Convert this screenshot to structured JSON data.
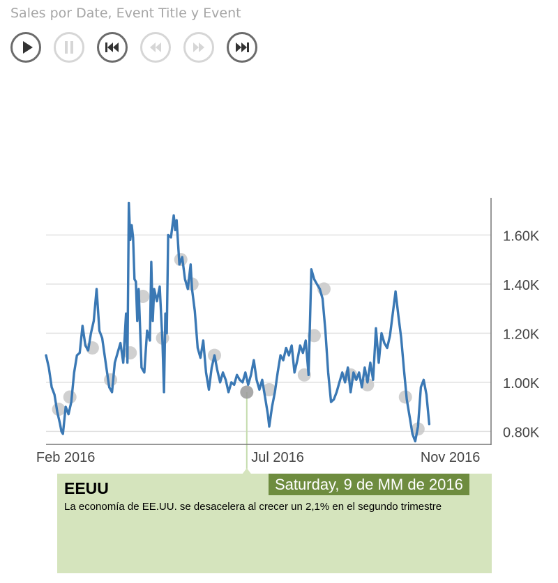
{
  "header": {
    "title": "Sales por Date, Event Title y Event"
  },
  "controls": [
    {
      "name": "play-button",
      "icon": "play-icon",
      "enabled": true
    },
    {
      "name": "pause-button",
      "icon": "pause-icon",
      "enabled": false
    },
    {
      "name": "skip-to-start-button",
      "icon": "skip-to-start-icon",
      "enabled": true
    },
    {
      "name": "step-back-button",
      "icon": "step-back-icon",
      "enabled": false
    },
    {
      "name": "step-forward-button",
      "icon": "step-forward-icon",
      "enabled": false
    },
    {
      "name": "skip-to-end-button",
      "icon": "skip-to-end-icon",
      "enabled": true
    }
  ],
  "colors": {
    "line": "#3a78b4",
    "marker": "#c8c8c8",
    "marker_active": "#9a9a9a",
    "gridline": "#e1e1e1",
    "axis_text": "#444444",
    "info_background": "#d5e4bd",
    "date_background": "#6e8c3f",
    "guide_line": "#c5dcae"
  },
  "chart_data": {
    "type": "line",
    "title": "Sales por Date, Event Title y Event",
    "xlim": [
      "2016-01-18",
      "2016-11-30"
    ],
    "ylim": [
      750,
      1740
    ],
    "y_ticks": [
      {
        "value": 800,
        "label": "0.80K"
      },
      {
        "value": 1000,
        "label": "1.00K"
      },
      {
        "value": 1200,
        "label": "1.20K"
      },
      {
        "value": 1400,
        "label": "1.40K"
      },
      {
        "value": 1600,
        "label": "1.60K"
      }
    ],
    "x_ticks": [
      {
        "date": "2016-02-01",
        "label": "Feb 2016"
      },
      {
        "date": "2016-07-01",
        "label": "Jul 2016"
      },
      {
        "date": "2016-11-01",
        "label": "Nov 2016"
      }
    ],
    "grid": true,
    "y_axis_position": "right",
    "series": [
      {
        "values": [
          [
            "2016-01-18",
            1110
          ],
          [
            "2016-01-20",
            1060
          ],
          [
            "2016-01-22",
            980
          ],
          [
            "2016-01-24",
            950
          ],
          [
            "2016-01-26",
            880
          ],
          [
            "2016-01-28",
            830
          ],
          [
            "2016-01-29",
            800
          ],
          [
            "2016-01-30",
            790
          ],
          [
            "2016-02-01",
            900
          ],
          [
            "2016-02-03",
            870
          ],
          [
            "2016-02-05",
            920
          ],
          [
            "2016-02-07",
            1040
          ],
          [
            "2016-02-09",
            1110
          ],
          [
            "2016-02-11",
            1120
          ],
          [
            "2016-02-13",
            1230
          ],
          [
            "2016-02-15",
            1150
          ],
          [
            "2016-02-17",
            1130
          ],
          [
            "2016-02-19",
            1200
          ],
          [
            "2016-02-21",
            1250
          ],
          [
            "2016-02-23",
            1380
          ],
          [
            "2016-02-25",
            1210
          ],
          [
            "2016-02-27",
            1180
          ],
          [
            "2016-03-01",
            1060
          ],
          [
            "2016-03-03",
            980
          ],
          [
            "2016-03-05",
            960
          ],
          [
            "2016-03-07",
            1080
          ],
          [
            "2016-03-09",
            1120
          ],
          [
            "2016-03-11",
            1160
          ],
          [
            "2016-03-13",
            1080
          ],
          [
            "2016-03-15",
            1280
          ],
          [
            "2016-03-16",
            1080
          ],
          [
            "2016-03-17",
            1730
          ],
          [
            "2016-03-18",
            1580
          ],
          [
            "2016-03-19",
            1640
          ],
          [
            "2016-03-20",
            1590
          ],
          [
            "2016-03-21",
            1420
          ],
          [
            "2016-03-22",
            1410
          ],
          [
            "2016-03-23",
            1250
          ],
          [
            "2016-03-24",
            1380
          ],
          [
            "2016-03-26",
            1060
          ],
          [
            "2016-03-28",
            1040
          ],
          [
            "2016-03-30",
            1210
          ],
          [
            "2016-04-01",
            1170
          ],
          [
            "2016-04-02",
            1490
          ],
          [
            "2016-04-03",
            1250
          ],
          [
            "2016-04-04",
            1380
          ],
          [
            "2016-04-06",
            1330
          ],
          [
            "2016-04-08",
            1390
          ],
          [
            "2016-04-10",
            1160
          ],
          [
            "2016-04-11",
            960
          ],
          [
            "2016-04-12",
            1280
          ],
          [
            "2016-04-13",
            1200
          ],
          [
            "2016-04-14",
            1600
          ],
          [
            "2016-04-16",
            1590
          ],
          [
            "2016-04-18",
            1680
          ],
          [
            "2016-04-19",
            1620
          ],
          [
            "2016-04-20",
            1660
          ],
          [
            "2016-04-22",
            1480
          ],
          [
            "2016-04-24",
            1510
          ],
          [
            "2016-04-26",
            1420
          ],
          [
            "2016-04-28",
            1380
          ],
          [
            "2016-04-30",
            1480
          ],
          [
            "2016-05-01",
            1380
          ],
          [
            "2016-05-03",
            1290
          ],
          [
            "2016-05-05",
            1140
          ],
          [
            "2016-05-07",
            1100
          ],
          [
            "2016-05-09",
            1170
          ],
          [
            "2016-05-11",
            1040
          ],
          [
            "2016-05-13",
            970
          ],
          [
            "2016-05-15",
            1060
          ],
          [
            "2016-05-17",
            1110
          ],
          [
            "2016-05-19",
            1050
          ],
          [
            "2016-05-21",
            1000
          ],
          [
            "2016-05-23",
            1040
          ],
          [
            "2016-05-25",
            1010
          ],
          [
            "2016-05-27",
            960
          ],
          [
            "2016-05-29",
            1000
          ],
          [
            "2016-05-31",
            990
          ],
          [
            "2016-06-02",
            1030
          ],
          [
            "2016-06-04",
            1010
          ],
          [
            "2016-06-06",
            1000
          ],
          [
            "2016-06-08",
            1040
          ],
          [
            "2016-06-10",
            990
          ],
          [
            "2016-06-12",
            1030
          ],
          [
            "2016-06-14",
            1090
          ],
          [
            "2016-06-16",
            1010
          ],
          [
            "2016-06-18",
            970
          ],
          [
            "2016-06-20",
            1010
          ],
          [
            "2016-06-22",
            940
          ],
          [
            "2016-06-24",
            870
          ],
          [
            "2016-06-25",
            820
          ],
          [
            "2016-06-27",
            900
          ],
          [
            "2016-06-29",
            960
          ],
          [
            "2016-07-01",
            1040
          ],
          [
            "2016-07-03",
            1110
          ],
          [
            "2016-07-05",
            1090
          ],
          [
            "2016-07-07",
            1140
          ],
          [
            "2016-07-09",
            1110
          ],
          [
            "2016-07-11",
            1150
          ],
          [
            "2016-07-13",
            1040
          ],
          [
            "2016-07-15",
            1090
          ],
          [
            "2016-07-17",
            1150
          ],
          [
            "2016-07-19",
            1120
          ],
          [
            "2016-07-21",
            1170
          ],
          [
            "2016-07-23",
            1030
          ],
          [
            "2016-07-25",
            1460
          ],
          [
            "2016-07-27",
            1420
          ],
          [
            "2016-07-29",
            1400
          ],
          [
            "2016-07-31",
            1380
          ],
          [
            "2016-08-02",
            1340
          ],
          [
            "2016-08-04",
            1210
          ],
          [
            "2016-08-06",
            1040
          ],
          [
            "2016-08-08",
            920
          ],
          [
            "2016-08-10",
            930
          ],
          [
            "2016-08-12",
            960
          ],
          [
            "2016-08-14",
            1000
          ],
          [
            "2016-08-16",
            1040
          ],
          [
            "2016-08-18",
            1000
          ],
          [
            "2016-08-20",
            1060
          ],
          [
            "2016-08-22",
            960
          ],
          [
            "2016-08-24",
            1040
          ],
          [
            "2016-08-26",
            1010
          ],
          [
            "2016-08-28",
            1040
          ],
          [
            "2016-08-30",
            980
          ],
          [
            "2016-09-01",
            1060
          ],
          [
            "2016-09-03",
            1000
          ],
          [
            "2016-09-05",
            1080
          ],
          [
            "2016-09-07",
            1010
          ],
          [
            "2016-09-09",
            1220
          ],
          [
            "2016-09-11",
            1080
          ],
          [
            "2016-09-13",
            1200
          ],
          [
            "2016-09-15",
            1160
          ],
          [
            "2016-09-17",
            1140
          ],
          [
            "2016-09-19",
            1190
          ],
          [
            "2016-09-21",
            1280
          ],
          [
            "2016-09-23",
            1370
          ],
          [
            "2016-09-25",
            1270
          ],
          [
            "2016-09-27",
            1180
          ],
          [
            "2016-09-29",
            1050
          ],
          [
            "2016-10-01",
            930
          ],
          [
            "2016-10-03",
            860
          ],
          [
            "2016-10-05",
            790
          ],
          [
            "2016-10-07",
            760
          ],
          [
            "2016-10-09",
            820
          ],
          [
            "2016-10-11",
            980
          ],
          [
            "2016-10-13",
            1010
          ],
          [
            "2016-10-15",
            950
          ],
          [
            "2016-10-17",
            830
          ]
        ]
      }
    ],
    "event_markers": [
      [
        "2016-01-27",
        890
      ],
      [
        "2016-02-04",
        940
      ],
      [
        "2016-02-20",
        1140
      ],
      [
        "2016-03-04",
        1010
      ],
      [
        "2016-03-18",
        1120
      ],
      [
        "2016-03-27",
        1350
      ],
      [
        "2016-04-10",
        1180
      ],
      [
        "2016-04-23",
        1500
      ],
      [
        "2016-05-01",
        1400
      ],
      [
        "2016-05-17",
        1110
      ],
      [
        "2016-06-09",
        960
      ],
      [
        "2016-06-25",
        970
      ],
      [
        "2016-07-20",
        1030
      ],
      [
        "2016-07-27",
        1190
      ],
      [
        "2016-08-03",
        1380
      ],
      [
        "2016-08-22",
        1030
      ],
      [
        "2016-09-03",
        990
      ],
      [
        "2016-09-30",
        940
      ],
      [
        "2016-10-09",
        810
      ]
    ],
    "active_event": {
      "date": "2016-06-09",
      "value": 960
    }
  },
  "event_detail": {
    "heading": "EEUU",
    "description": "La economía de EE.UU. se desacelera al crecer un 2,1% en el segundo trimestre",
    "date_label": "Saturday, 9 de MM de 2016"
  }
}
